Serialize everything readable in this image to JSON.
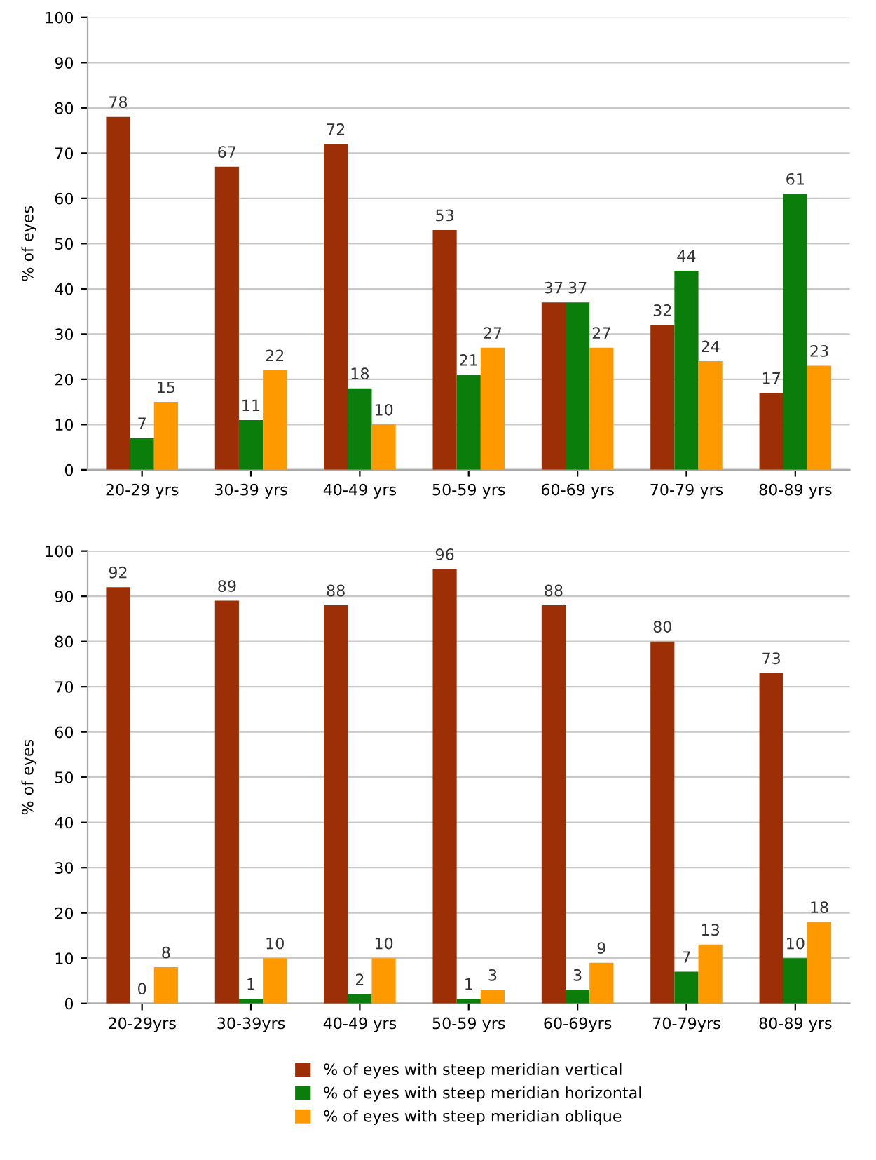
{
  "chart_data": [
    {
      "type": "bar",
      "ylabel": "% of eyes",
      "categories": [
        "20-29 yrs",
        "30-39 yrs",
        "40-49 yrs",
        "50-59 yrs",
        "60-69 yrs",
        "70-79 yrs",
        "80-89 yrs"
      ],
      "series": [
        {
          "color": "#9c2f05",
          "values": [
            78,
            67,
            72,
            53,
            37,
            32,
            17
          ]
        },
        {
          "color": "#0a7d0a",
          "values": [
            7,
            11,
            18,
            21,
            37,
            44,
            61
          ]
        },
        {
          "color": "#ff9900",
          "values": [
            15,
            22,
            10,
            27,
            27,
            24,
            23
          ]
        }
      ],
      "ylim": [
        0,
        100
      ],
      "yticks": [
        0,
        10,
        20,
        30,
        40,
        50,
        60,
        70,
        80,
        90,
        100
      ],
      "grid": "y",
      "data_labels": true
    },
    {
      "type": "bar",
      "ylabel": "% of eyes",
      "categories": [
        "20-29yrs",
        "30-39yrs",
        "40-49 yrs",
        "50-59 yrs",
        "60-69yrs",
        "70-79yrs",
        "80-89 yrs"
      ],
      "series": [
        {
          "name": "% of eyes with steep meridian vertical",
          "color": "#9c2f05",
          "values": [
            92,
            89,
            88,
            96,
            88,
            80,
            73
          ]
        },
        {
          "name": "% of eyes with steep meridian horizontal",
          "color": "#0a7d0a",
          "values": [
            0,
            1,
            2,
            1,
            3,
            7,
            10
          ]
        },
        {
          "name": "% of eyes with steep meridian oblique",
          "color": "#ff9900",
          "values": [
            8,
            10,
            10,
            3,
            9,
            13,
            18
          ]
        }
      ],
      "ylim": [
        0,
        100
      ],
      "yticks": [
        0,
        10,
        20,
        30,
        40,
        50,
        60,
        70,
        80,
        90,
        100
      ],
      "grid": "y",
      "data_labels": true,
      "legend": "bottom"
    }
  ]
}
